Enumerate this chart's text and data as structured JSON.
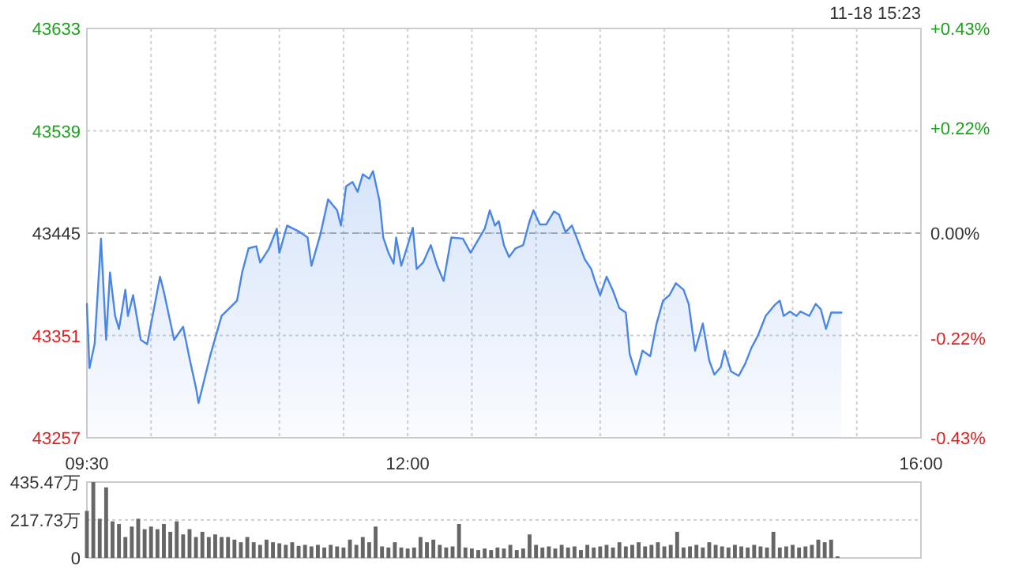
{
  "chart_data": [
    {
      "type": "area",
      "color": "#4a86e8",
      "grid": true,
      "x": [
        9.5,
        9.52,
        9.56,
        9.61,
        9.65,
        9.68,
        9.72,
        9.75,
        9.8,
        9.82,
        9.86,
        9.92,
        9.97,
        10.07,
        10.1,
        10.18,
        10.25,
        10.3,
        10.35,
        10.37,
        10.46,
        10.55,
        10.61,
        10.67,
        10.71,
        10.76,
        10.82,
        10.85,
        10.92,
        10.98,
        11.0,
        11.06,
        11.16,
        11.22,
        11.25,
        11.32,
        11.38,
        11.45,
        11.48,
        11.52,
        11.57,
        11.61,
        11.65,
        11.7,
        11.73,
        11.78,
        11.81,
        11.85,
        11.89,
        11.91,
        11.95,
        12.0,
        12.04,
        12.07,
        12.12,
        12.18,
        12.23,
        12.28,
        12.34,
        12.43,
        12.49,
        12.54,
        12.6,
        12.64,
        12.68,
        12.71,
        12.75,
        12.79,
        12.84,
        12.9,
        12.95,
        12.98,
        13.03,
        13.08,
        13.14,
        13.18,
        13.23,
        13.28,
        13.32,
        13.38,
        13.43,
        13.46,
        13.5,
        13.55,
        13.6,
        13.65,
        13.7,
        13.73,
        13.78,
        13.83,
        13.89,
        13.94,
        13.99,
        14.04,
        14.09,
        14.15,
        14.19,
        14.24,
        14.3,
        14.35,
        14.39,
        14.44,
        14.47,
        14.52,
        14.58,
        14.63,
        14.68,
        14.73,
        14.79,
        14.86,
        14.9,
        14.93,
        14.98,
        15.03,
        15.06,
        15.13,
        15.18,
        15.22,
        15.26,
        15.3,
        15.38
      ],
      "values": [
        43380,
        43321,
        43343,
        43440,
        43347,
        43409,
        43369,
        43357,
        43393,
        43369,
        43388,
        43347,
        43343,
        43405,
        43391,
        43347,
        43359,
        43330,
        43303,
        43289,
        43332,
        43369,
        43376,
        43383,
        43409,
        43431,
        43433,
        43418,
        43431,
        43449,
        43427,
        43452,
        43446,
        43441,
        43415,
        43444,
        43476,
        43466,
        43452,
        43488,
        43492,
        43483,
        43499,
        43495,
        43502,
        43475,
        43441,
        43427,
        43417,
        43441,
        43415,
        43434,
        43450,
        43412,
        43418,
        43434,
        43415,
        43401,
        43441,
        43440,
        43427,
        43437,
        43449,
        43466,
        43452,
        43456,
        43434,
        43423,
        43431,
        43434,
        43456,
        43466,
        43453,
        43453,
        43465,
        43462,
        43446,
        43452,
        43440,
        43421,
        43412,
        43401,
        43388,
        43405,
        43392,
        43376,
        43372,
        43334,
        43315,
        43337,
        43332,
        43362,
        43383,
        43388,
        43399,
        43393,
        43380,
        43337,
        43362,
        43328,
        43315,
        43322,
        43337,
        43318,
        43314,
        43325,
        43340,
        43351,
        43369,
        43379,
        43383,
        43369,
        43373,
        43369,
        43373,
        43369,
        43380,
        43375,
        43357,
        43372,
        43372
      ],
      "xlim": [
        9.5,
        16
      ],
      "xticks": [
        {
          "value": 9.5,
          "label": "09:30"
        },
        {
          "value": 10,
          "label": null
        },
        {
          "value": 10.5,
          "label": null
        },
        {
          "value": 11,
          "label": null
        },
        {
          "value": 11.5,
          "label": null
        },
        {
          "value": 12,
          "label": "12:00"
        },
        {
          "value": 12.5,
          "label": null
        },
        {
          "value": 13,
          "label": null
        },
        {
          "value": 13.5,
          "label": null
        },
        {
          "value": 14,
          "label": null
        },
        {
          "value": 14.5,
          "label": null
        },
        {
          "value": 15,
          "label": null
        },
        {
          "value": 15.5,
          "label": null
        },
        {
          "value": 16,
          "label": "16:00"
        }
      ],
      "ylim": [
        43257,
        43633
      ],
      "yticks": [
        43257,
        43351,
        43445,
        43539,
        43633
      ],
      "y2lim": [
        -0.43,
        0.43
      ],
      "y2ticks": [
        {
          "value": 0.43,
          "label": "+0.43%"
        },
        {
          "value": 0.22,
          "label": "+0.22%"
        },
        {
          "value": 0,
          "label": "0.00%"
        },
        {
          "value": -0.22,
          "label": "-0.22%"
        },
        {
          "value": -0.43,
          "label": "-0.43%"
        }
      ],
      "ref_lines": [
        {
          "axis": "y",
          "value": 43445,
          "line_style": "dashed",
          "color": "#aaaaaa"
        }
      ],
      "annotations": [
        "11-18 15:23"
      ]
    },
    {
      "type": "bar",
      "color": "#666666",
      "grid": "y",
      "tick_labels": "y",
      "x": [
        9.5,
        9.55,
        9.6,
        9.65,
        9.7,
        9.75,
        9.8,
        9.85,
        9.9,
        9.95,
        10.0,
        10.05,
        10.1,
        10.15,
        10.2,
        10.25,
        10.3,
        10.35,
        10.4,
        10.45,
        10.5,
        10.55,
        10.6,
        10.65,
        10.7,
        10.75,
        10.8,
        10.85,
        10.9,
        10.95,
        11.0,
        11.05,
        11.1,
        11.15,
        11.2,
        11.25,
        11.3,
        11.35,
        11.4,
        11.45,
        11.5,
        11.55,
        11.6,
        11.65,
        11.7,
        11.75,
        11.8,
        11.85,
        11.9,
        11.95,
        12.0,
        12.05,
        12.1,
        12.15,
        12.2,
        12.25,
        12.3,
        12.35,
        12.4,
        12.45,
        12.5,
        12.55,
        12.6,
        12.65,
        12.7,
        12.75,
        12.8,
        12.85,
        12.9,
        12.95,
        13.0,
        13.05,
        13.1,
        13.15,
        13.2,
        13.25,
        13.3,
        13.35,
        13.4,
        13.45,
        13.5,
        13.55,
        13.6,
        13.65,
        13.7,
        13.75,
        13.8,
        13.85,
        13.9,
        13.95,
        14.0,
        14.05,
        14.1,
        14.15,
        14.2,
        14.25,
        14.3,
        14.35,
        14.4,
        14.45,
        14.5,
        14.55,
        14.6,
        14.65,
        14.7,
        14.75,
        14.8,
        14.85,
        14.9,
        14.95,
        15.0,
        15.05,
        15.1,
        15.15,
        15.2,
        15.25,
        15.3,
        15.35
      ],
      "values": [
        270,
        435,
        225,
        405,
        210,
        195,
        120,
        180,
        225,
        165,
        180,
        165,
        195,
        150,
        210,
        135,
        165,
        120,
        150,
        120,
        135,
        120,
        120,
        105,
        90,
        120,
        90,
        75,
        105,
        90,
        84,
        75,
        90,
        69,
        75,
        66,
        75,
        60,
        75,
        66,
        60,
        105,
        75,
        120,
        90,
        180,
        66,
        60,
        90,
        60,
        54,
        60,
        120,
        90,
        105,
        75,
        60,
        66,
        195,
        60,
        54,
        45,
        54,
        45,
        60,
        54,
        75,
        45,
        54,
        135,
        75,
        60,
        66,
        54,
        75,
        60,
        66,
        45,
        75,
        60,
        66,
        75,
        60,
        90,
        66,
        75,
        90,
        66,
        75,
        90,
        66,
        75,
        150,
        60,
        66,
        75,
        60,
        90,
        75,
        66,
        60,
        75,
        66,
        60,
        75,
        66,
        60,
        150,
        60,
        66,
        75,
        60,
        66,
        75,
        105,
        90,
        105,
        9
      ],
      "xlim": [
        9.5,
        16
      ],
      "ylim": [
        0,
        435.47
      ],
      "yticks": [
        0,
        {
          "value": 217.73,
          "label": "217.73万"
        },
        {
          "value": 435.47,
          "label": "435.47万"
        }
      ]
    }
  ]
}
